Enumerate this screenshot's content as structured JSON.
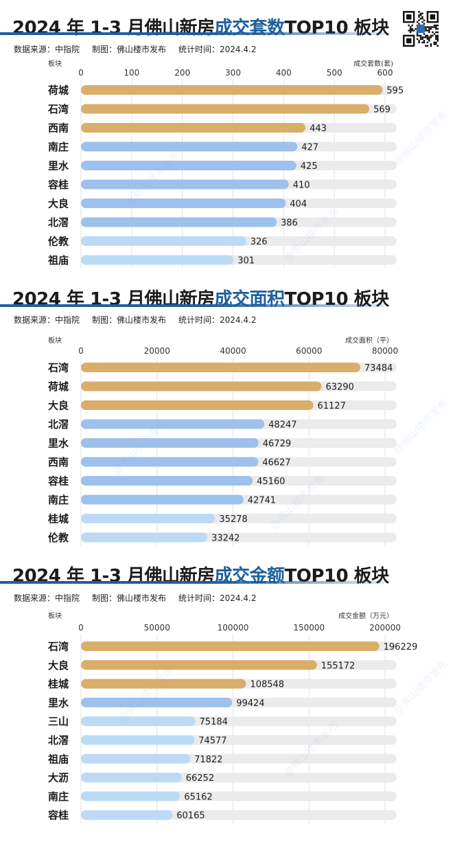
{
  "brand_watermark": "@佛山楼市发布",
  "qr_code": "qr-code-icon",
  "colors": {
    "gold": "#d9ae6a",
    "blue_dark": "#9ec0ec",
    "blue_light": "#bcdaf6",
    "track": "#ebebeb",
    "title_accent": "#1f5f9e"
  },
  "sections": [
    {
      "title_pre": "2024 年 1-3 月佛山新房",
      "title_hl": "成交套数",
      "title_post": "TOP10 板块",
      "meta": {
        "source": "数据来源：中指院",
        "made": "制图：佛山楼市发布",
        "time": "统计时间：2024.4.2"
      }
    },
    {
      "title_pre": "2024 年 1-3 月佛山新房",
      "title_hl": "成交面积",
      "title_post": "TOP10 板块",
      "meta": {
        "source": "数据来源：中指院",
        "made": "制图：佛山楼市发布",
        "time": "统计时间：2024.4.2"
      }
    },
    {
      "title_pre": "2024 年 1-3 月佛山新房",
      "title_hl": "成交金额",
      "title_post": "TOP10 板块",
      "meta": {
        "source": "数据来源：中指院",
        "made": "制图：佛山楼市发布",
        "time": "统计时间：2024.4.2"
      }
    }
  ],
  "chart_data": [
    {
      "type": "bar",
      "orientation": "horizontal",
      "category_label": "板块",
      "unit_label": "成交套数(套)",
      "xlim": [
        0,
        600
      ],
      "ticks": [
        0,
        100,
        200,
        300,
        400,
        500,
        600
      ],
      "tick_labels": [
        "0",
        "100",
        "200",
        "300",
        "400",
        "500",
        "600"
      ],
      "categories": [
        "荷城",
        "石湾",
        "西南",
        "南庄",
        "里水",
        "容桂",
        "大良",
        "北滘",
        "伦教",
        "祖庙"
      ],
      "values": [
        595,
        569,
        443,
        427,
        425,
        410,
        404,
        386,
        326,
        301
      ],
      "colors": [
        "gold",
        "gold",
        "gold",
        "blue_dark",
        "blue_dark",
        "blue_dark",
        "blue_dark",
        "blue_dark",
        "blue_light",
        "blue_light"
      ]
    },
    {
      "type": "bar",
      "orientation": "horizontal",
      "category_label": "板块",
      "unit_label": "成交面积（平）",
      "xlim": [
        0,
        80000
      ],
      "ticks": [
        0,
        20000,
        40000,
        60000,
        80000
      ],
      "tick_labels": [
        "0",
        "20000",
        "40000",
        "60000",
        "80000"
      ],
      "categories": [
        "石湾",
        "荷城",
        "大良",
        "北滘",
        "里水",
        "西南",
        "容桂",
        "南庄",
        "桂城",
        "伦教"
      ],
      "values": [
        73484,
        63290,
        61127,
        48247,
        46729,
        46627,
        45160,
        42741,
        35278,
        33242
      ],
      "colors": [
        "gold",
        "gold",
        "gold",
        "blue_dark",
        "blue_dark",
        "blue_dark",
        "blue_dark",
        "blue_dark",
        "blue_light",
        "blue_light"
      ]
    },
    {
      "type": "bar",
      "orientation": "horizontal",
      "category_label": "板块",
      "unit_label": "成交金额（万元）",
      "xlim": [
        0,
        200000
      ],
      "ticks": [
        0,
        50000,
        100000,
        150000,
        200000
      ],
      "tick_labels": [
        "0",
        "50000",
        "100000",
        "150000",
        "200000"
      ],
      "categories": [
        "石湾",
        "大良",
        "桂城",
        "里水",
        "三山",
        "北滘",
        "祖庙",
        "大沥",
        "南庄",
        "容桂"
      ],
      "values": [
        196229,
        155172,
        108548,
        99424,
        75184,
        74577,
        71822,
        66252,
        65162,
        60165
      ],
      "colors": [
        "gold",
        "gold",
        "gold",
        "blue_dark",
        "blue_light",
        "blue_light",
        "blue_light",
        "blue_light",
        "blue_light",
        "blue_light"
      ]
    }
  ]
}
